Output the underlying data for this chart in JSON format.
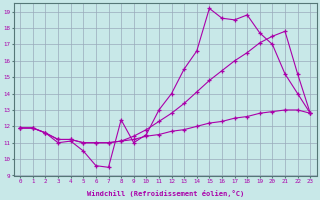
{
  "xlabel": "Windchill (Refroidissement éolien,°C)",
  "bg_color": "#c8e8e8",
  "grid_color": "#99aabb",
  "line_color": "#aa00aa",
  "xlim": [
    -0.5,
    23.5
  ],
  "ylim": [
    9,
    19.5
  ],
  "xticks": [
    0,
    1,
    2,
    3,
    4,
    5,
    6,
    7,
    8,
    9,
    10,
    11,
    12,
    13,
    14,
    15,
    16,
    17,
    18,
    19,
    20,
    21,
    22,
    23
  ],
  "yticks": [
    9,
    10,
    11,
    12,
    13,
    14,
    15,
    16,
    17,
    18,
    19
  ],
  "line1_x": [
    0,
    1,
    2,
    3,
    4,
    5,
    6,
    7,
    8,
    9,
    10,
    11,
    12,
    13,
    14,
    15,
    16,
    17,
    18,
    19,
    20,
    21,
    22,
    23
  ],
  "line1_y": [
    11.9,
    11.9,
    11.6,
    11.0,
    11.1,
    10.5,
    9.6,
    9.5,
    12.4,
    11.0,
    11.5,
    13.0,
    14.0,
    15.5,
    16.6,
    19.2,
    18.6,
    18.5,
    18.8,
    17.7,
    17.0,
    15.2,
    14.0,
    12.8
  ],
  "line2_x": [
    0,
    1,
    2,
    3,
    4,
    5,
    6,
    7,
    8,
    9,
    10,
    11,
    12,
    13,
    14,
    15,
    16,
    17,
    18,
    19,
    20,
    21,
    22,
    23
  ],
  "line2_y": [
    11.9,
    11.9,
    11.6,
    11.2,
    11.2,
    11.0,
    11.0,
    11.0,
    11.1,
    11.4,
    11.8,
    12.3,
    12.8,
    13.4,
    14.1,
    14.8,
    15.4,
    16.0,
    16.5,
    17.1,
    17.5,
    17.8,
    15.2,
    12.8
  ],
  "line3_x": [
    0,
    1,
    2,
    3,
    4,
    5,
    6,
    7,
    8,
    9,
    10,
    11,
    12,
    13,
    14,
    15,
    16,
    17,
    18,
    19,
    20,
    21,
    22,
    23
  ],
  "line3_y": [
    11.9,
    11.9,
    11.6,
    11.2,
    11.2,
    11.0,
    11.0,
    11.0,
    11.1,
    11.2,
    11.4,
    11.5,
    11.7,
    11.8,
    12.0,
    12.2,
    12.3,
    12.5,
    12.6,
    12.8,
    12.9,
    13.0,
    13.0,
    12.8
  ]
}
